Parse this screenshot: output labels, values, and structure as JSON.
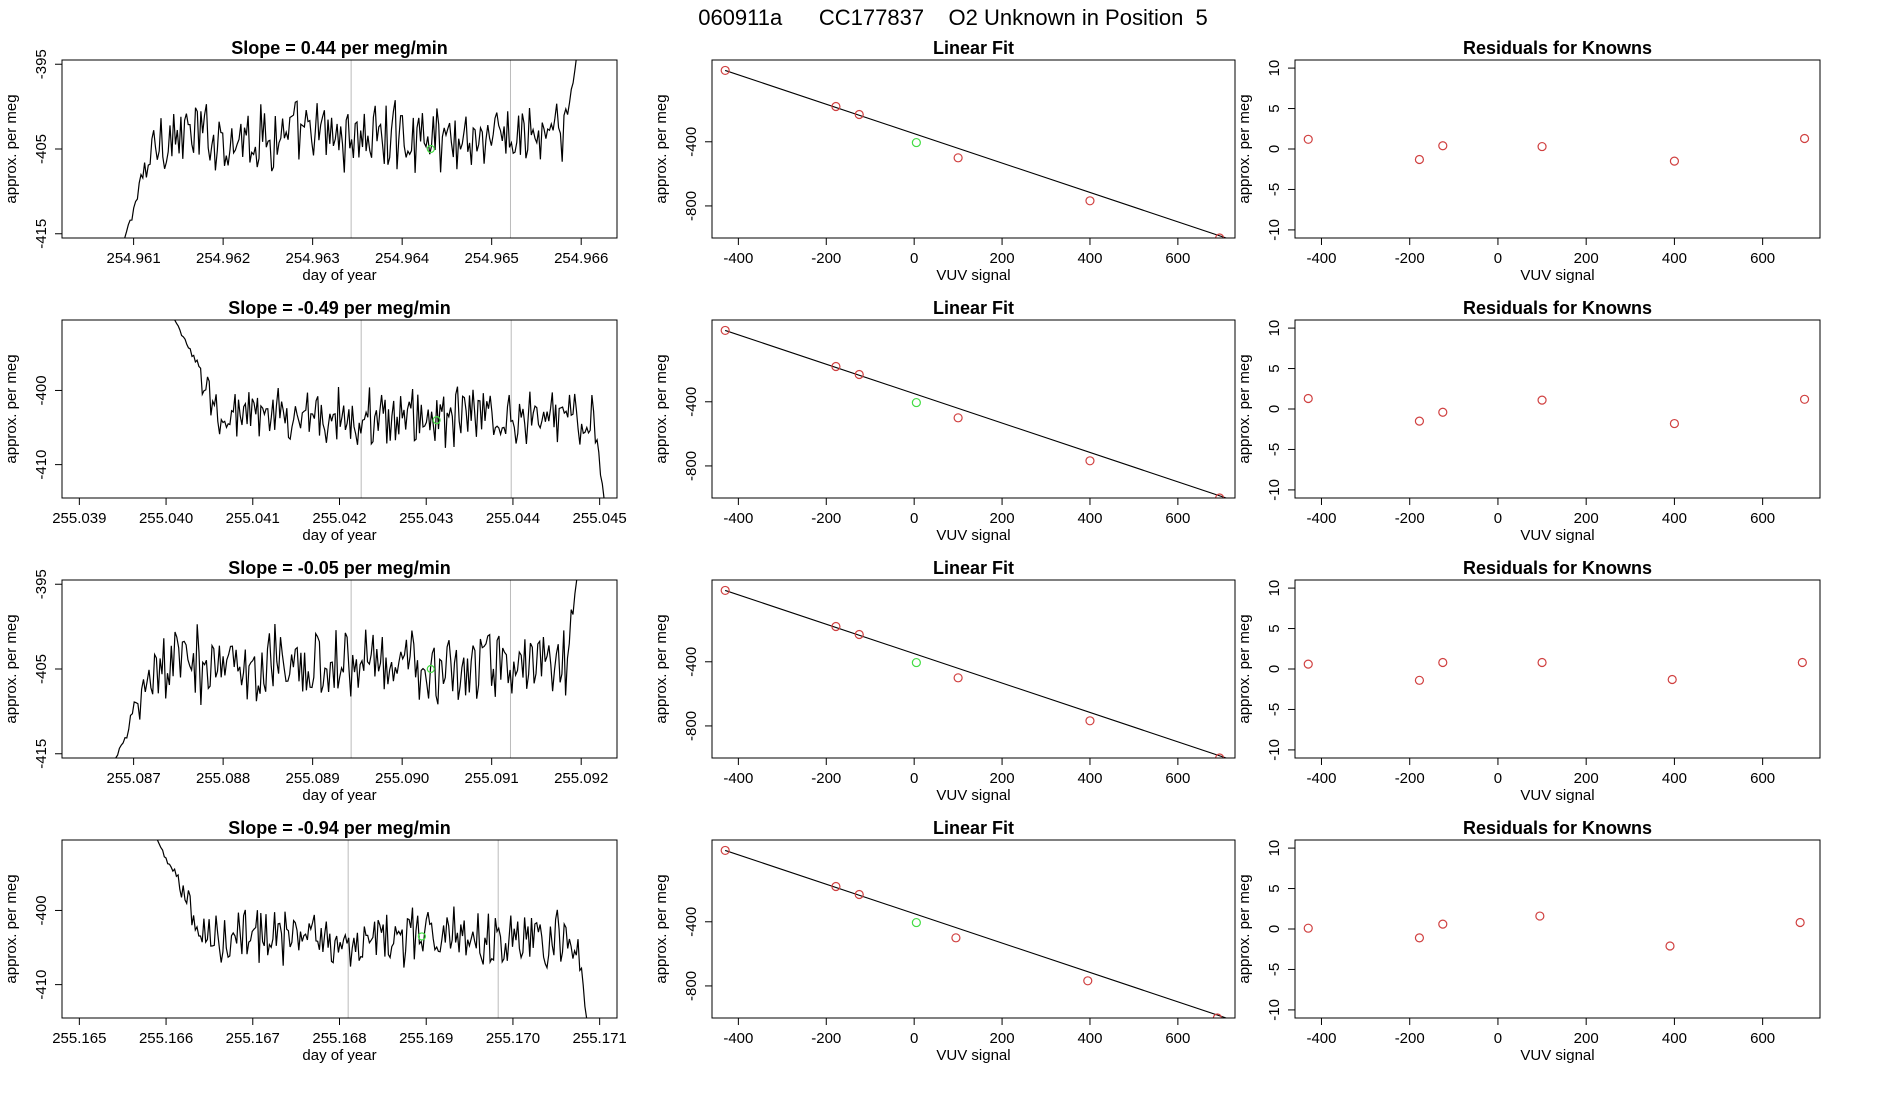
{
  "page_title": "060911a      CC177837    O2 Unknown in Position  5",
  "colors": {
    "line": "#000000",
    "known_point": "#d04040",
    "unknown_point": "#44dd44",
    "boundary_line": "#bbbbbb",
    "background": "#ffffff"
  },
  "chart_data": [
    {
      "type": "line",
      "row": 1,
      "title": "Slope =  0.44  per meg/min",
      "xlabel": "day of year",
      "ylabel": "approx. per meg",
      "xlim": [
        254.9602,
        254.9664
      ],
      "ylim": [
        -415.5,
        -394.5
      ],
      "xticks": [
        "254.961",
        "254.962",
        "254.963",
        "254.964",
        "254.965",
        "254.966"
      ],
      "yticks": [
        "-395",
        "-405",
        "-415"
      ],
      "y_tick_values": [
        -395,
        -405,
        -415
      ],
      "segment_bounds": [
        254.96343,
        254.96521
      ],
      "unknown_point": {
        "x": 254.96432,
        "y": -405
      },
      "series_start": 254.9609,
      "series_end": 254.96595,
      "n_points": 250,
      "series_profile": {
        "initial_level": -415.5,
        "plateau_level": -403.5,
        "ramp_fraction": 0.08,
        "jitter": 3.2,
        "final_level": -394
      }
    },
    {
      "type": "scatter",
      "row": 1,
      "title": "Linear Fit",
      "xlabel": "VUV signal",
      "ylabel": "approx. per meg",
      "xlim": [
        -460,
        730
      ],
      "ylim": [
        -1000,
        110
      ],
      "xticks": [
        "-400",
        "-200",
        "0",
        "200",
        "400",
        "600"
      ],
      "x_tick_values": [
        -400,
        -200,
        0,
        200,
        400,
        600
      ],
      "yticks": [
        "-400",
        "-800"
      ],
      "y_tick_values": [
        -400,
        -800
      ],
      "fit_line": {
        "x": [
          -430,
          710
        ],
        "y": [
          45,
          -1000
        ]
      },
      "known_points": {
        "x": [
          -430,
          -178,
          -125,
          100,
          400,
          695
        ],
        "y": [
          45,
          -180,
          -230,
          -500,
          -768,
          -1000
        ]
      },
      "unknown_points": {
        "x": [
          5
        ],
        "y": [
          -405
        ]
      }
    },
    {
      "type": "scatter",
      "row": 1,
      "title": "Residuals for Knowns",
      "xlabel": "VUV signal",
      "ylabel": "approx. per meg",
      "xlim": [
        -460,
        730
      ],
      "ylim": [
        -11,
        11
      ],
      "xticks": [
        "-400",
        "-200",
        "0",
        "200",
        "400",
        "600"
      ],
      "x_tick_values": [
        -400,
        -200,
        0,
        200,
        400,
        600
      ],
      "yticks": [
        "10",
        "5",
        "0",
        "-5",
        "-10"
      ],
      "y_tick_values": [
        10,
        5,
        0,
        -5,
        -10
      ],
      "known_points": {
        "x": [
          -430,
          -178,
          -125,
          100,
          400,
          695
        ],
        "y": [
          1.2,
          -1.3,
          0.4,
          0.3,
          -1.5,
          1.3
        ]
      }
    },
    {
      "type": "line",
      "row": 2,
      "title": "Slope =  -0.49  per meg/min",
      "xlabel": "day of year",
      "ylabel": "approx. per meg",
      "xlim": [
        255.0388,
        255.0452
      ],
      "ylim": [
        -414.5,
        -390.5
      ],
      "xticks": [
        "255.039",
        "255.040",
        "255.041",
        "255.042",
        "255.043",
        "255.044",
        "255.045"
      ],
      "yticks": [
        "-400",
        "-410"
      ],
      "y_tick_values": [
        -400,
        -410
      ],
      "segment_bounds": [
        255.04225,
        255.04398
      ],
      "unknown_point": {
        "x": 255.04312,
        "y": -404
      },
      "series_start": 255.0401,
      "series_end": 255.04505,
      "n_points": 250,
      "series_profile": {
        "initial_level": -390.5,
        "plateau_level": -403.5,
        "ramp_fraction": 0.12,
        "jitter": 3.0,
        "final_level": -414.5
      }
    },
    {
      "type": "scatter",
      "row": 2,
      "title": "Linear Fit",
      "xlabel": "VUV signal",
      "ylabel": "approx. per meg",
      "xlim": [
        -460,
        730
      ],
      "ylim": [
        -1000,
        110
      ],
      "xticks": [
        "-400",
        "-200",
        "0",
        "200",
        "400",
        "600"
      ],
      "x_tick_values": [
        -400,
        -200,
        0,
        200,
        400,
        600
      ],
      "yticks": [
        "-400",
        "-800"
      ],
      "y_tick_values": [
        -400,
        -800
      ],
      "fit_line": {
        "x": [
          -430,
          710
        ],
        "y": [
          45,
          -1000
        ]
      },
      "known_points": {
        "x": [
          -430,
          -178,
          -125,
          100,
          400,
          695
        ],
        "y": [
          45,
          -180,
          -230,
          -500,
          -768,
          -1000
        ]
      },
      "unknown_points": {
        "x": [
          5
        ],
        "y": [
          -405
        ]
      }
    },
    {
      "type": "scatter",
      "row": 2,
      "title": "Residuals for Knowns",
      "xlabel": "VUV signal",
      "ylabel": "approx. per meg",
      "xlim": [
        -460,
        730
      ],
      "ylim": [
        -11,
        11
      ],
      "xticks": [
        "-400",
        "-200",
        "0",
        "200",
        "400",
        "600"
      ],
      "x_tick_values": [
        -400,
        -200,
        0,
        200,
        400,
        600
      ],
      "yticks": [
        "10",
        "5",
        "0",
        "-5",
        "-10"
      ],
      "y_tick_values": [
        10,
        5,
        0,
        -5,
        -10
      ],
      "known_points": {
        "x": [
          -430,
          -178,
          -125,
          100,
          400,
          695
        ],
        "y": [
          1.3,
          -1.5,
          -0.4,
          1.1,
          -1.8,
          1.2
        ]
      }
    },
    {
      "type": "line",
      "row": 3,
      "title": "Slope =  -0.05  per meg/min",
      "xlabel": "day of year",
      "ylabel": "approx. per meg",
      "xlim": [
        255.0862,
        255.0924
      ],
      "ylim": [
        -415.5,
        -394.5
      ],
      "xticks": [
        "255.087",
        "255.088",
        "255.089",
        "255.090",
        "255.091",
        "255.092"
      ],
      "yticks": [
        "-395",
        "-405",
        "-415"
      ],
      "y_tick_values": [
        -395,
        -405,
        -415
      ],
      "segment_bounds": [
        255.08943,
        255.09121
      ],
      "unknown_point": {
        "x": 255.09032,
        "y": -405
      },
      "series_start": 255.0868,
      "series_end": 255.09195,
      "n_points": 250,
      "series_profile": {
        "initial_level": -415.5,
        "plateau_level": -404.5,
        "ramp_fraction": 0.1,
        "jitter": 3.5,
        "final_level": -394.5
      }
    },
    {
      "type": "scatter",
      "row": 3,
      "title": "Linear Fit",
      "xlabel": "VUV signal",
      "ylabel": "approx. per meg",
      "xlim": [
        -460,
        730
      ],
      "ylim": [
        -1000,
        110
      ],
      "xticks": [
        "-400",
        "-200",
        "0",
        "200",
        "400",
        "600"
      ],
      "x_tick_values": [
        -400,
        -200,
        0,
        200,
        400,
        600
      ],
      "yticks": [
        "-400",
        "-800"
      ],
      "y_tick_values": [
        -400,
        -800
      ],
      "fit_line": {
        "x": [
          -430,
          710
        ],
        "y": [
          45,
          -1000
        ]
      },
      "known_points": {
        "x": [
          -430,
          -178,
          -125,
          100,
          400,
          695
        ],
        "y": [
          45,
          -180,
          -230,
          -500,
          -768,
          -1000
        ]
      },
      "unknown_points": {
        "x": [
          5
        ],
        "y": [
          -405
        ]
      }
    },
    {
      "type": "scatter",
      "row": 3,
      "title": "Residuals for Knowns",
      "xlabel": "VUV signal",
      "ylabel": "approx. per meg",
      "xlim": [
        -460,
        730
      ],
      "ylim": [
        -11,
        11
      ],
      "xticks": [
        "-400",
        "-200",
        "0",
        "200",
        "400",
        "600"
      ],
      "x_tick_values": [
        -400,
        -200,
        0,
        200,
        400,
        600
      ],
      "yticks": [
        "10",
        "5",
        "0",
        "-5",
        "-10"
      ],
      "y_tick_values": [
        10,
        5,
        0,
        -5,
        -10
      ],
      "known_points": {
        "x": [
          -430,
          -178,
          -125,
          100,
          395,
          690
        ],
        "y": [
          0.6,
          -1.4,
          0.8,
          0.8,
          -1.3,
          0.8
        ]
      }
    },
    {
      "type": "line",
      "row": 4,
      "title": "Slope =  -0.94  per meg/min",
      "xlabel": "day of year",
      "ylabel": "approx. per meg",
      "xlim": [
        255.1648,
        255.1712
      ],
      "ylim": [
        -414.5,
        -390.5
      ],
      "xticks": [
        "255.165",
        "255.166",
        "255.167",
        "255.168",
        "255.169",
        "255.170",
        "255.171"
      ],
      "yticks": [
        "-400",
        "-410"
      ],
      "y_tick_values": [
        -400,
        -410
      ],
      "segment_bounds": [
        255.1681,
        255.16983
      ],
      "unknown_point": {
        "x": 255.16895,
        "y": -403.5
      },
      "series_start": 255.1659,
      "series_end": 255.17085,
      "n_points": 250,
      "series_profile": {
        "initial_level": -390.5,
        "plateau_level": -403.5,
        "ramp_fraction": 0.12,
        "jitter": 3.0,
        "final_level": -414.5
      }
    },
    {
      "type": "scatter",
      "row": 4,
      "title": "Linear Fit",
      "xlabel": "VUV signal",
      "ylabel": "approx. per meg",
      "xlim": [
        -460,
        730
      ],
      "ylim": [
        -1000,
        110
      ],
      "xticks": [
        "-400",
        "-200",
        "0",
        "200",
        "400",
        "600"
      ],
      "x_tick_values": [
        -400,
        -200,
        0,
        200,
        400,
        600
      ],
      "yticks": [
        "-400",
        "-800"
      ],
      "y_tick_values": [
        -400,
        -800
      ],
      "fit_line": {
        "x": [
          -430,
          710
        ],
        "y": [
          45,
          -1000
        ]
      },
      "known_points": {
        "x": [
          -430,
          -178,
          -125,
          95,
          395,
          690
        ],
        "y": [
          45,
          -180,
          -230,
          -500,
          -768,
          -1000
        ]
      },
      "unknown_points": {
        "x": [
          5
        ],
        "y": [
          -405
        ]
      }
    },
    {
      "type": "scatter",
      "row": 4,
      "title": "Residuals for Knowns",
      "xlabel": "VUV signal",
      "ylabel": "approx. per meg",
      "xlim": [
        -460,
        730
      ],
      "ylim": [
        -11,
        11
      ],
      "xticks": [
        "-400",
        "-200",
        "0",
        "200",
        "400",
        "600"
      ],
      "x_tick_values": [
        -400,
        -200,
        0,
        200,
        400,
        600
      ],
      "yticks": [
        "10",
        "5",
        "0",
        "-5",
        "-10"
      ],
      "y_tick_values": [
        10,
        5,
        0,
        -5,
        -10
      ],
      "known_points": {
        "x": [
          -430,
          -178,
          -125,
          95,
          390,
          685
        ],
        "y": [
          0.1,
          -1.1,
          0.6,
          1.6,
          -2.1,
          0.8
        ]
      }
    }
  ]
}
